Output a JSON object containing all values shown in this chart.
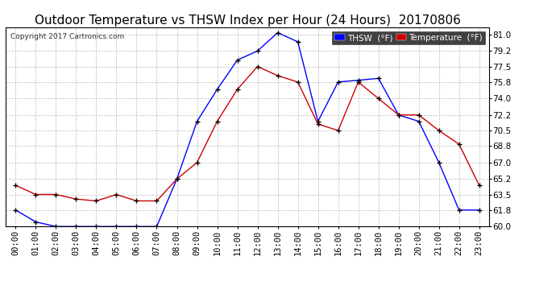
{
  "title": "Outdoor Temperature vs THSW Index per Hour (24 Hours)  20170806",
  "copyright": "Copyright 2017 Cartronics.com",
  "hours": [
    "00:00",
    "01:00",
    "02:00",
    "03:00",
    "04:00",
    "05:00",
    "06:00",
    "07:00",
    "08:00",
    "09:00",
    "10:00",
    "11:00",
    "12:00",
    "13:00",
    "14:00",
    "15:00",
    "16:00",
    "17:00",
    "18:00",
    "19:00",
    "20:00",
    "21:00",
    "22:00",
    "23:00"
  ],
  "thsw": [
    61.8,
    60.5,
    60.0,
    60.0,
    60.0,
    60.0,
    60.0,
    60.0,
    65.2,
    71.5,
    75.0,
    78.2,
    79.2,
    81.2,
    80.2,
    71.5,
    75.8,
    76.0,
    76.2,
    72.2,
    71.5,
    67.0,
    61.8,
    61.8
  ],
  "temperature": [
    64.5,
    63.5,
    63.5,
    63.0,
    62.8,
    63.5,
    62.8,
    62.8,
    65.2,
    67.0,
    71.5,
    75.0,
    77.5,
    76.5,
    75.8,
    71.2,
    70.5,
    75.8,
    74.0,
    72.2,
    72.2,
    70.5,
    69.0,
    64.5
  ],
  "ylim": [
    60.0,
    81.8
  ],
  "yticks": [
    60.0,
    61.8,
    63.5,
    65.2,
    67.0,
    68.8,
    70.5,
    72.2,
    74.0,
    75.8,
    77.5,
    79.2,
    81.0
  ],
  "thsw_color": "#0000ff",
  "temp_color": "#cc0000",
  "bg_color": "#ffffff",
  "plot_bg_color": "#ffffff",
  "grid_color": "#bbbbbb",
  "title_fontsize": 11,
  "label_fontsize": 7.5,
  "copyright_fontsize": 6.5,
  "legend_thsw_label": "THSW  (°F)",
  "legend_temp_label": "Temperature  (°F)"
}
